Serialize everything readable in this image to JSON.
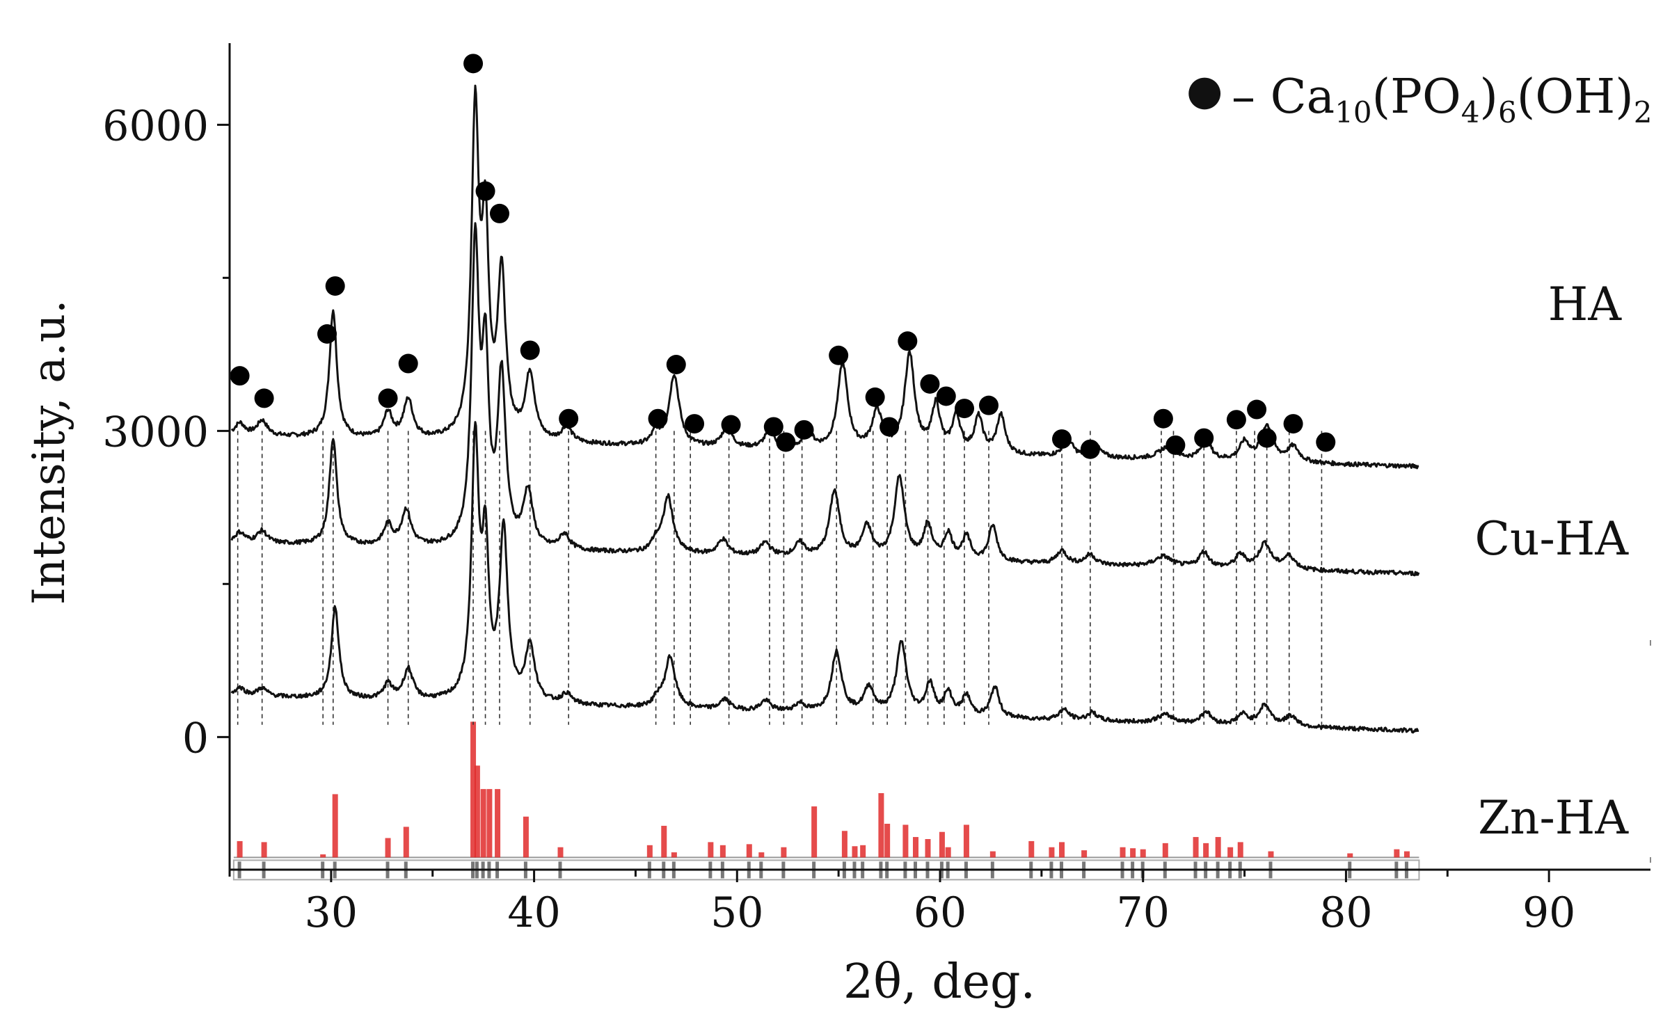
{
  "chart_data": {
    "type": "line",
    "title": "",
    "xlabel": "2θ, deg.",
    "ylabel": "Intensity, a.u.",
    "xlim": [
      25,
      95
    ],
    "ylim": [
      -1300,
      6800
    ],
    "xticks": [
      "30",
      "40",
      "50",
      "60",
      "70",
      "80",
      "90"
    ],
    "yticks": [
      "0",
      "3000",
      "6000"
    ],
    "legend": {
      "marker": "●",
      "dash": "– ",
      "formula_parts": [
        "Ca",
        "10",
        "(PO",
        "4",
        ")",
        "6",
        "(OH)",
        "2"
      ]
    },
    "marker_label": "Ca10(PO4)6(OH)2",
    "series": [
      {
        "name": "HA",
        "baseline": 2950,
        "baseline_end": 2650,
        "peaks": [
          [
            25.5,
            120,
            0.3
          ],
          [
            26.6,
            150,
            0.3
          ],
          [
            30.1,
            1250,
            0.22
          ],
          [
            32.8,
            250,
            0.25
          ],
          [
            33.8,
            380,
            0.28
          ],
          [
            37.1,
            3150,
            0.22
          ],
          [
            37.6,
            1900,
            0.2
          ],
          [
            38.4,
            1600,
            0.24
          ],
          [
            39.8,
            650,
            0.28
          ],
          [
            41.6,
            150,
            0.3
          ],
          [
            46.0,
            120,
            0.25
          ],
          [
            46.9,
            700,
            0.3
          ],
          [
            49.5,
            200,
            0.3
          ],
          [
            51.6,
            170,
            0.3
          ],
          [
            53.5,
            160,
            0.3
          ],
          [
            55.2,
            850,
            0.3
          ],
          [
            56.9,
            380,
            0.3
          ],
          [
            58.5,
            950,
            0.3
          ],
          [
            59.8,
            450,
            0.25
          ],
          [
            60.8,
            350,
            0.25
          ],
          [
            61.9,
            350,
            0.25
          ],
          [
            63.0,
            380,
            0.25
          ],
          [
            66.3,
            170,
            0.3
          ],
          [
            67.7,
            100,
            0.3
          ],
          [
            71.2,
            120,
            0.5
          ],
          [
            73.1,
            200,
            0.3
          ],
          [
            75.0,
            180,
            0.3
          ],
          [
            76.1,
            350,
            0.35
          ],
          [
            77.4,
            150,
            0.35
          ]
        ]
      },
      {
        "name": "Cu-HA",
        "baseline": 1900,
        "baseline_end": 1600,
        "peaks": [
          [
            25.5,
            100,
            0.3
          ],
          [
            26.6,
            120,
            0.3
          ],
          [
            30.1,
            1050,
            0.22
          ],
          [
            32.8,
            200,
            0.25
          ],
          [
            33.7,
            350,
            0.28
          ],
          [
            37.1,
            2900,
            0.22
          ],
          [
            37.6,
            1700,
            0.2
          ],
          [
            38.4,
            1650,
            0.24
          ],
          [
            39.7,
            550,
            0.28
          ],
          [
            41.5,
            150,
            0.3
          ],
          [
            46.0,
            100,
            0.25
          ],
          [
            46.6,
            550,
            0.3
          ],
          [
            49.3,
            150,
            0.3
          ],
          [
            51.4,
            130,
            0.3
          ],
          [
            53.1,
            130,
            0.3
          ],
          [
            54.8,
            650,
            0.3
          ],
          [
            56.4,
            300,
            0.3
          ],
          [
            58.0,
            800,
            0.3
          ],
          [
            59.4,
            330,
            0.25
          ],
          [
            60.4,
            250,
            0.25
          ],
          [
            61.3,
            230,
            0.25
          ],
          [
            62.6,
            350,
            0.25
          ],
          [
            66.0,
            130,
            0.3
          ],
          [
            67.4,
            100,
            0.3
          ],
          [
            71.0,
            100,
            0.5
          ],
          [
            73.0,
            150,
            0.3
          ],
          [
            74.8,
            130,
            0.3
          ],
          [
            76.0,
            250,
            0.35
          ],
          [
            77.2,
            130,
            0.35
          ]
        ]
      },
      {
        "name": "Zn-HA",
        "baseline": 400,
        "baseline_end": 60,
        "peaks": [
          [
            25.5,
            80,
            0.3
          ],
          [
            26.6,
            80,
            0.3
          ],
          [
            30.2,
            900,
            0.22
          ],
          [
            32.8,
            150,
            0.25
          ],
          [
            33.8,
            300,
            0.28
          ],
          [
            37.1,
            2500,
            0.22
          ],
          [
            37.6,
            1400,
            0.2
          ],
          [
            38.5,
            1650,
            0.24
          ],
          [
            39.8,
            550,
            0.28
          ],
          [
            41.6,
            100,
            0.3
          ],
          [
            46.1,
            80,
            0.25
          ],
          [
            46.7,
            500,
            0.3
          ],
          [
            49.4,
            100,
            0.3
          ],
          [
            51.4,
            100,
            0.3
          ],
          [
            53.1,
            80,
            0.3
          ],
          [
            54.9,
            600,
            0.3
          ],
          [
            56.5,
            250,
            0.3
          ],
          [
            58.1,
            700,
            0.3
          ],
          [
            59.5,
            300,
            0.25
          ],
          [
            60.4,
            220,
            0.25
          ],
          [
            61.3,
            200,
            0.25
          ],
          [
            62.7,
            300,
            0.25
          ],
          [
            66.1,
            100,
            0.3
          ],
          [
            67.5,
            80,
            0.3
          ],
          [
            71.1,
            80,
            0.5
          ],
          [
            73.1,
            120,
            0.3
          ],
          [
            74.9,
            100,
            0.3
          ],
          [
            76.0,
            200,
            0.35
          ],
          [
            77.3,
            100,
            0.35
          ]
        ]
      }
    ],
    "phase_markers": [
      {
        "x": 25.5,
        "y": 3540
      },
      {
        "x": 26.7,
        "y": 3320
      },
      {
        "x": 29.8,
        "y": 3950
      },
      {
        "x": 30.2,
        "y": 4420
      },
      {
        "x": 32.8,
        "y": 3320
      },
      {
        "x": 33.8,
        "y": 3660
      },
      {
        "x": 37.0,
        "y": 6600
      },
      {
        "x": 37.6,
        "y": 5350
      },
      {
        "x": 38.3,
        "y": 5130
      },
      {
        "x": 39.8,
        "y": 3790
      },
      {
        "x": 41.7,
        "y": 3120
      },
      {
        "x": 46.1,
        "y": 3120
      },
      {
        "x": 47.0,
        "y": 3650
      },
      {
        "x": 47.9,
        "y": 3070
      },
      {
        "x": 49.7,
        "y": 3060
      },
      {
        "x": 51.8,
        "y": 3040
      },
      {
        "x": 52.4,
        "y": 2890
      },
      {
        "x": 53.3,
        "y": 3010
      },
      {
        "x": 55.0,
        "y": 3740
      },
      {
        "x": 56.8,
        "y": 3330
      },
      {
        "x": 57.5,
        "y": 3040
      },
      {
        "x": 58.4,
        "y": 3880
      },
      {
        "x": 59.5,
        "y": 3460
      },
      {
        "x": 60.3,
        "y": 3340
      },
      {
        "x": 61.2,
        "y": 3220
      },
      {
        "x": 62.4,
        "y": 3250
      },
      {
        "x": 66.0,
        "y": 2920
      },
      {
        "x": 67.4,
        "y": 2820
      },
      {
        "x": 71.0,
        "y": 3120
      },
      {
        "x": 71.6,
        "y": 2860
      },
      {
        "x": 73.0,
        "y": 2930
      },
      {
        "x": 74.6,
        "y": 3110
      },
      {
        "x": 75.6,
        "y": 3210
      },
      {
        "x": 76.1,
        "y": 2930
      },
      {
        "x": 77.4,
        "y": 3070
      },
      {
        "x": 79.0,
        "y": 2890
      }
    ],
    "dashed_lines": [
      25.4,
      26.6,
      29.6,
      30.1,
      32.8,
      33.8,
      37.0,
      37.6,
      38.3,
      39.8,
      41.7,
      46.0,
      46.9,
      47.7,
      49.6,
      51.6,
      52.3,
      53.2,
      54.9,
      56.7,
      57.4,
      58.3,
      59.4,
      60.2,
      61.2,
      62.4,
      66.0,
      67.4,
      70.9,
      71.5,
      73.0,
      74.6,
      75.5,
      76.1,
      77.2,
      78.8
    ],
    "reference_sticks": {
      "baseline": -1180,
      "sticks": [
        [
          25.5,
          160
        ],
        [
          26.7,
          150
        ],
        [
          29.6,
          30
        ],
        [
          30.2,
          620
        ],
        [
          32.8,
          190
        ],
        [
          33.7,
          300
        ],
        [
          37.0,
          1330
        ],
        [
          37.2,
          900
        ],
        [
          37.5,
          670
        ],
        [
          37.8,
          670
        ],
        [
          38.2,
          670
        ],
        [
          39.6,
          400
        ],
        [
          41.3,
          100
        ],
        [
          45.7,
          120
        ],
        [
          46.4,
          310
        ],
        [
          46.9,
          50
        ],
        [
          48.7,
          150
        ],
        [
          49.3,
          120
        ],
        [
          50.6,
          130
        ],
        [
          51.2,
          50
        ],
        [
          52.3,
          100
        ],
        [
          53.8,
          500
        ],
        [
          55.3,
          260
        ],
        [
          55.8,
          110
        ],
        [
          56.2,
          120
        ],
        [
          57.1,
          630
        ],
        [
          57.4,
          330
        ],
        [
          58.3,
          320
        ],
        [
          58.8,
          200
        ],
        [
          59.4,
          180
        ],
        [
          60.1,
          250
        ],
        [
          60.4,
          100
        ],
        [
          61.3,
          320
        ],
        [
          62.6,
          60
        ],
        [
          64.5,
          160
        ],
        [
          65.5,
          100
        ],
        [
          66.0,
          150
        ],
        [
          67.1,
          70
        ],
        [
          69.0,
          100
        ],
        [
          69.5,
          90
        ],
        [
          70.0,
          80
        ],
        [
          71.1,
          140
        ],
        [
          72.6,
          200
        ],
        [
          73.1,
          140
        ],
        [
          73.7,
          200
        ],
        [
          74.3,
          100
        ],
        [
          74.8,
          150
        ],
        [
          76.3,
          60
        ],
        [
          80.2,
          40
        ],
        [
          82.5,
          80
        ],
        [
          83.0,
          60
        ]
      ]
    },
    "stick_color": "#e02b2b",
    "marker_color": "#000000",
    "line_color": "#111111"
  }
}
